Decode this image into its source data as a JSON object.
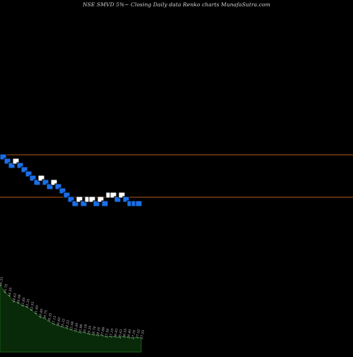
{
  "header": {
    "title": "NSE SMVD 5%~  Closing Daily data  Renko  charts MunafaSutra.com"
  },
  "colors": {
    "background": "#000000",
    "level_line": "#b45a14",
    "up_brick": "#ffffff",
    "down_brick": "#1a6fe8",
    "brick_outline": "#000000",
    "volume_fill": "#082a08",
    "volume_stroke": "#1d5a1d",
    "volume_label": "#c8c8c8"
  },
  "chart_data": [
    {
      "type": "renko",
      "brick_direction": [
        "down",
        "down",
        "down",
        "up",
        "down",
        "down",
        "down",
        "down",
        "down",
        "up",
        "down",
        "down",
        "up",
        "down",
        "down",
        "down",
        "down",
        "down",
        "up",
        "down",
        "up",
        "up",
        "down",
        "up",
        "down",
        "up",
        "up",
        "down",
        "up",
        "down",
        "down",
        "down",
        "down"
      ],
      "brick_level": [
        0,
        -1,
        -2,
        -1,
        -2,
        -3,
        -4,
        -5,
        -6,
        -5,
        -6,
        -7,
        -6,
        -7,
        -8,
        -9,
        -10,
        -11,
        -10,
        -11,
        -10,
        -10,
        -11,
        -10,
        -11,
        -9,
        -9,
        -10,
        -9,
        -10,
        -11,
        -11,
        -11
      ],
      "horizontal_lines_level": [
        0.5,
        -9.5
      ],
      "grid": false
    },
    {
      "type": "area",
      "series_labels": [
        "46.33",
        "45.75",
        "44.55",
        "44.63",
        "44.08",
        "43.85",
        "43.35",
        "42.55",
        "41.60",
        "40.85",
        "39.75",
        "38.35",
        "37.15",
        "36.60",
        "35.32",
        "34.22",
        "33.08",
        "32.00",
        "30.98",
        "30.18",
        "29.35",
        "28.74",
        "28.16",
        "27.88",
        "27.56",
        "27.10",
        "26.83",
        "26.63",
        "26.55",
        "26.40",
        "27.16",
        "27.52",
        "27.55"
      ],
      "volume": [
        95,
        85,
        80,
        72,
        70,
        66,
        64,
        60,
        55,
        50,
        48,
        44,
        40,
        38,
        36,
        34,
        32,
        30,
        28,
        28,
        26,
        25,
        24,
        24,
        22,
        22,
        22,
        21,
        22,
        21,
        20,
        21,
        20
      ],
      "grid": false
    }
  ]
}
